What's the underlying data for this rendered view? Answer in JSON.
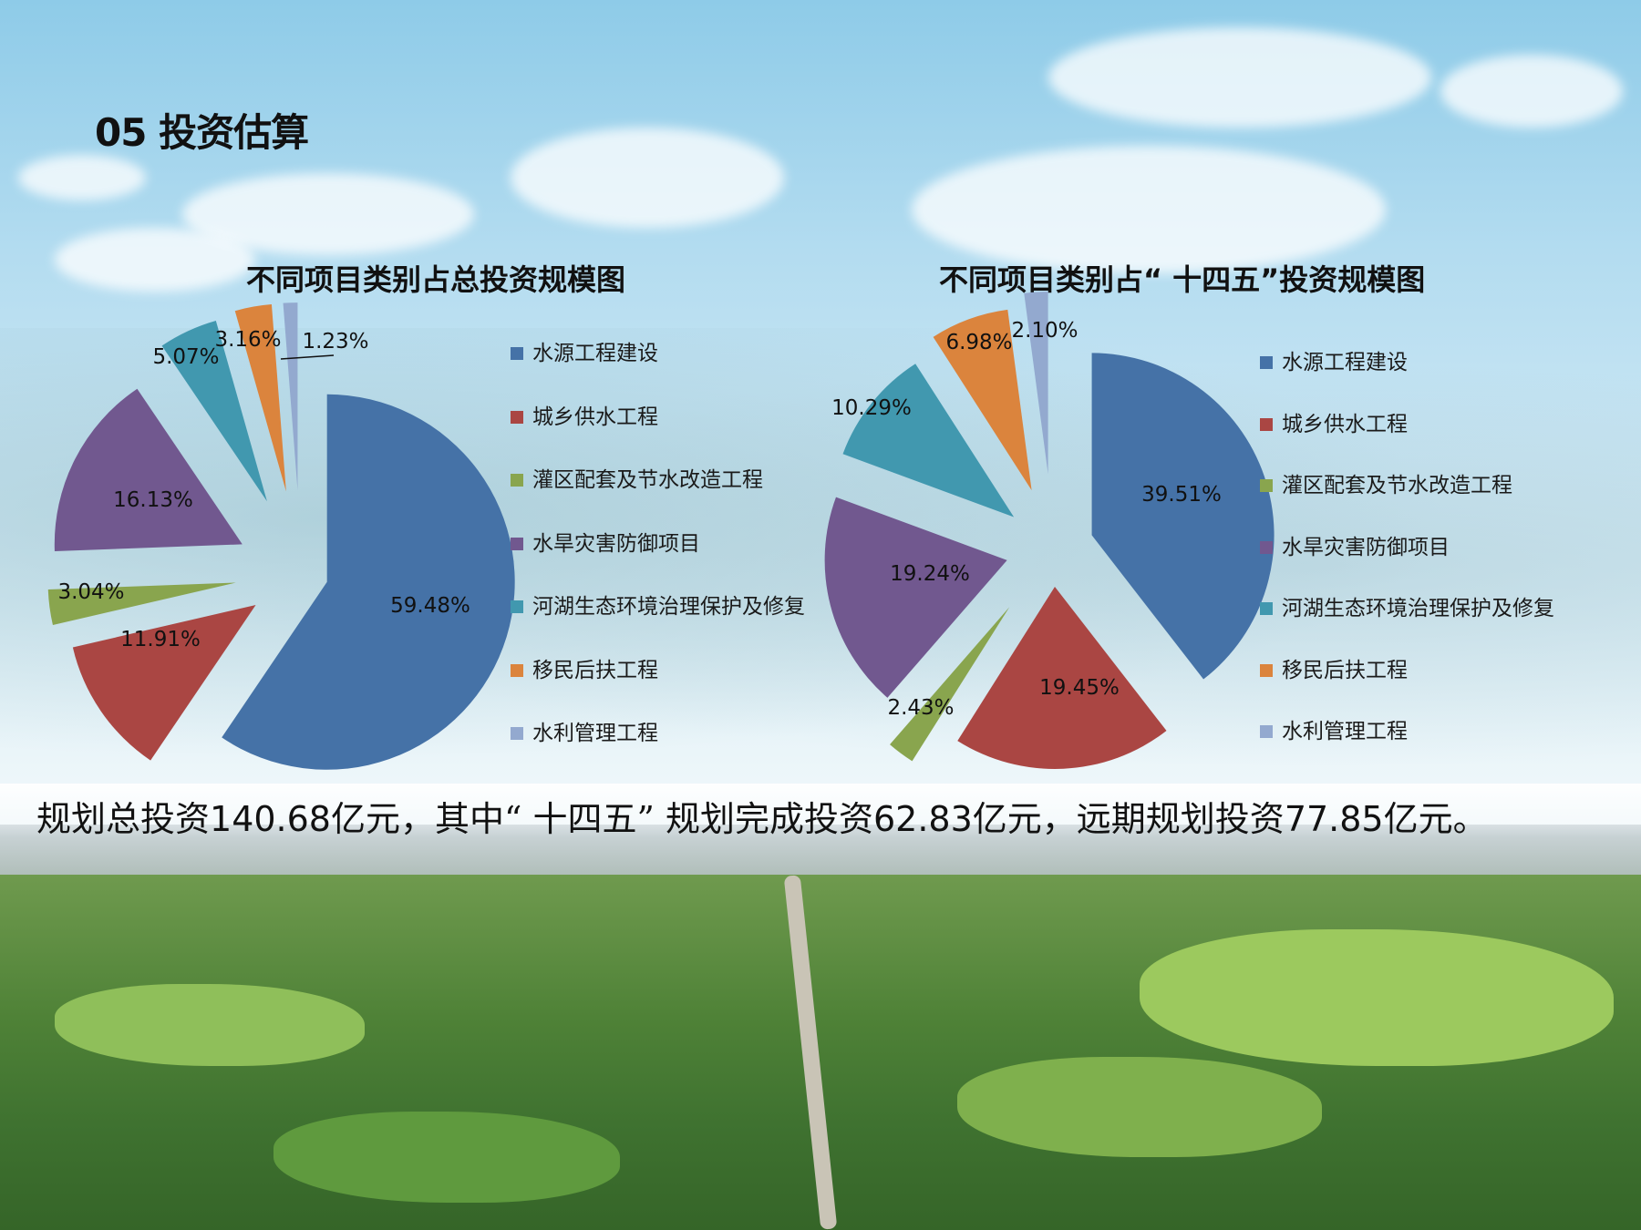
{
  "slide": {
    "title": "05 投资估算",
    "summary": {
      "t1": "规划总投资",
      "n1": "140.68",
      "t2": "亿元，其中“ 十四五” 规划完成投资",
      "n2": "62.83",
      "t3": "亿元，远期规划投资",
      "n3": "77.85",
      "t4": "亿元。"
    }
  },
  "colors": [
    "#4572a7",
    "#aa4643",
    "#89a54e",
    "#71588f",
    "#4198af",
    "#db843d",
    "#93a9cf"
  ],
  "chart_data": [
    {
      "type": "pie",
      "title": "不同项目类别占总投资规模图",
      "categories": [
        "水源工程建设",
        "城乡供水工程",
        "灌区配套及节水改造工程",
        "水旱灾害防御项目",
        "河湖生态环境治理保护及修复",
        "移民后扶工程",
        "水利管理工程"
      ],
      "values": [
        59.48,
        11.91,
        3.04,
        16.13,
        5.07,
        3.16,
        1.23
      ],
      "labels": [
        "59.48%",
        "11.91%",
        "3.04%",
        "16.13%",
        "5.07%",
        "3.16%",
        "1.23%"
      ],
      "legend": "right"
    },
    {
      "type": "pie",
      "title": "不同项目类别占“ 十四五”投资规模图",
      "categories": [
        "水源工程建设",
        "城乡供水工程",
        "灌区配套及节水改造工程",
        "水旱灾害防御项目",
        "河湖生态环境治理保护及修复",
        "移民后扶工程",
        "水利管理工程"
      ],
      "values": [
        39.51,
        19.45,
        2.43,
        19.24,
        10.29,
        6.98,
        2.1
      ],
      "labels": [
        "39.51%",
        "19.45%",
        "2.43%",
        "19.24%",
        "10.29%",
        "6.98%",
        "2.10%"
      ],
      "legend": "right"
    }
  ]
}
